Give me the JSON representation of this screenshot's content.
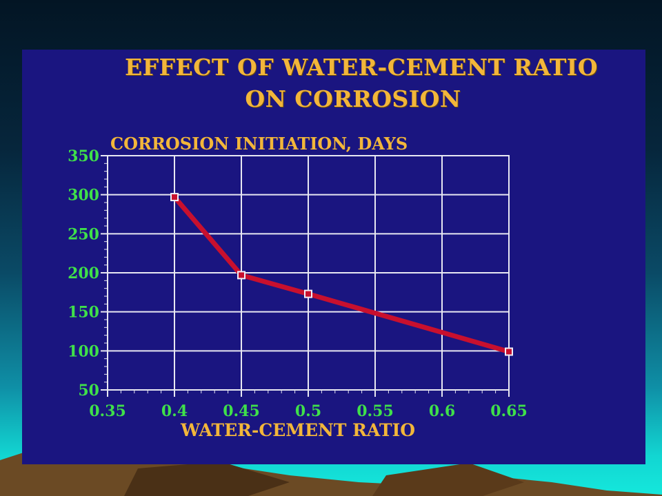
{
  "slide": {
    "title_line1": "EFFECT OF WATER-CEMENT RATIO",
    "title_line2": "ON CORROSION"
  },
  "colors": {
    "panel": "#1a1580",
    "title": "#f2b63a",
    "tick_labels": "#3fe04a",
    "grid": "#e8e8f2",
    "line": "#c8102e",
    "marker": "#f0eef8"
  },
  "chart_data": {
    "type": "line",
    "title": "CORROSION INITIATION, DAYS",
    "xlabel": "WATER-CEMENT RATIO",
    "ylabel": "",
    "xlim": [
      0.35,
      0.65
    ],
    "ylim": [
      50,
      350
    ],
    "x_ticks": [
      "0.35",
      "0.4",
      "0.45",
      "0.5",
      "0.55",
      "0.6",
      "0.65"
    ],
    "x_tick_values": [
      0.35,
      0.4,
      0.45,
      0.5,
      0.55,
      0.6,
      0.65
    ],
    "y_ticks": [
      "350",
      "300",
      "250",
      "200",
      "150",
      "100",
      "50"
    ],
    "y_tick_values": [
      350,
      300,
      250,
      200,
      150,
      100,
      50
    ],
    "grid": true,
    "series": [
      {
        "x": [
          0.4,
          0.45,
          0.5,
          0.65
        ],
        "y": [
          297,
          197,
          173,
          99
        ]
      }
    ]
  }
}
